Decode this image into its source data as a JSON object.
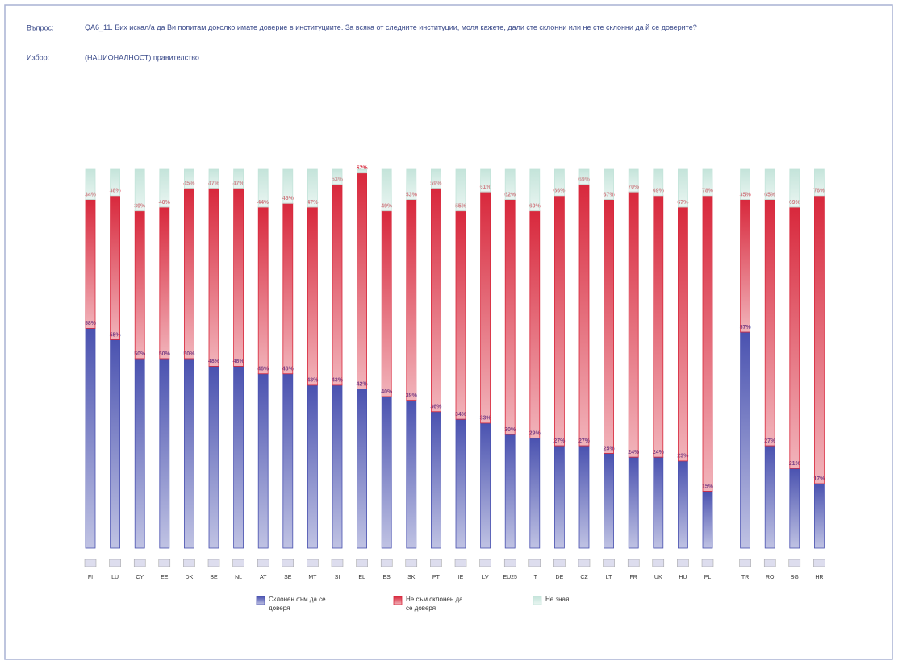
{
  "chart_data": {
    "type": "stacked_bar",
    "question_label": "Въпрос:",
    "question": "QA6_11. Бих искал/а да Ви попитам доколко имате доверие в институциите. За всяка от следните институции, моля кажете, дали сте склонни или не сте склонни да й се доверите?",
    "choice_label": "Избор:",
    "choice": "(НАЦИОНАЛНОСТ) правителство",
    "categories": [
      "FI",
      "LU",
      "CY",
      "EE",
      "DK",
      "BE",
      "NL",
      "AT",
      "SE",
      "MT",
      "SI",
      "EL",
      "ES",
      "SK",
      "PT",
      "IE",
      "LV",
      "EU25",
      "IT",
      "DE",
      "CZ",
      "LT",
      "FR",
      "UK",
      "HU",
      "PL",
      "TR",
      "RO",
      "BG",
      "HR"
    ],
    "series": [
      {
        "name": "Склонен съм да се доверя",
        "color": "#4a52b0",
        "values": [
          58,
          55,
          50,
          50,
          50,
          48,
          48,
          46,
          46,
          43,
          43,
          42,
          40,
          39,
          36,
          34,
          33,
          30,
          29,
          27,
          27,
          25,
          24,
          24,
          23,
          15,
          57,
          27,
          21,
          17
        ],
        "value_labels": [
          "58%",
          "55%",
          "50%",
          "50%",
          "50%",
          "48%",
          "48%",
          "46%",
          "46%",
          "43%",
          "43%",
          "42%",
          "40%",
          "39%",
          "36%",
          "34%",
          "33%",
          "30%",
          "29%",
          "27%",
          "27%",
          "25%",
          "24%",
          "24%",
          "23%",
          "15%",
          "57%",
          "27%",
          "21%",
          "17%"
        ]
      },
      {
        "name": "Не съм склонен да се доверя",
        "color": "#d8283c",
        "values": [
          34,
          38,
          39,
          40,
          45,
          47,
          47,
          44,
          45,
          47,
          53,
          57,
          49,
          53,
          59,
          55,
          61,
          62,
          60,
          66,
          69,
          67,
          70,
          69,
          67,
          78,
          35,
          65,
          69,
          76
        ],
        "value_labels": [
          "34%",
          "38%",
          "39%",
          "40%",
          "45%",
          "47%",
          "47%",
          "44%",
          "45%",
          "47%",
          "53%",
          "57%",
          "49%",
          "53%",
          "59%",
          "55%",
          "61%",
          "62%",
          "60%",
          "66%",
          "69%",
          "67%",
          "70%",
          "69%",
          "67%",
          "78%",
          "35%",
          "65%",
          "69%",
          "76%"
        ]
      },
      {
        "name": "Не зная",
        "color": "#c4e4da",
        "values": [
          8,
          7,
          11,
          10,
          5,
          5,
          5,
          10,
          9,
          10,
          4,
          1,
          11,
          8,
          5,
          11,
          6,
          8,
          11,
          7,
          4,
          8,
          6,
          7,
          10,
          7,
          8,
          8,
          10,
          7
        ]
      }
    ]
  }
}
